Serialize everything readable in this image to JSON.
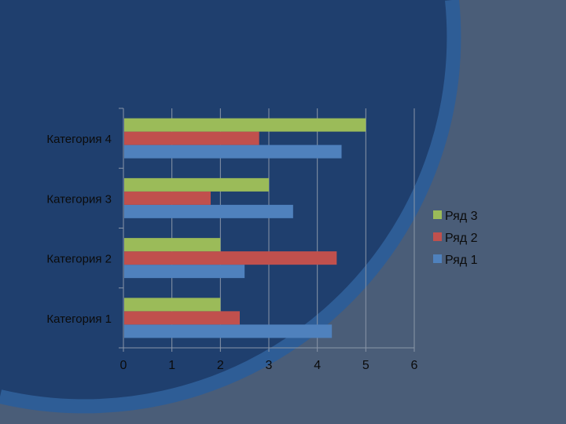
{
  "chart_data": {
    "type": "bar",
    "orientation": "horizontal",
    "title": "",
    "xlabel": "",
    "ylabel": "",
    "categories": [
      "Категория 1",
      "Категория 2",
      "Категория 3",
      "Категория 4"
    ],
    "series": [
      {
        "name": "Ряд 1",
        "color": "#4f81bd",
        "values": [
          4.3,
          2.5,
          3.5,
          4.5
        ]
      },
      {
        "name": "Ряд 2",
        "color": "#c0504d",
        "values": [
          2.4,
          4.4,
          1.8,
          2.8
        ]
      },
      {
        "name": "Ряд 3",
        "color": "#9bbb59",
        "values": [
          2,
          2,
          3,
          5
        ]
      }
    ],
    "xlim": [
      0,
      6
    ],
    "xticks": [
      "0",
      "1",
      "2",
      "3",
      "4",
      "5",
      "6"
    ],
    "grid": true,
    "legend": "right"
  },
  "background": {
    "base_color": "#1f3f6e",
    "arc_color": "#2e5d96",
    "corner_color": "#4a5d78"
  }
}
